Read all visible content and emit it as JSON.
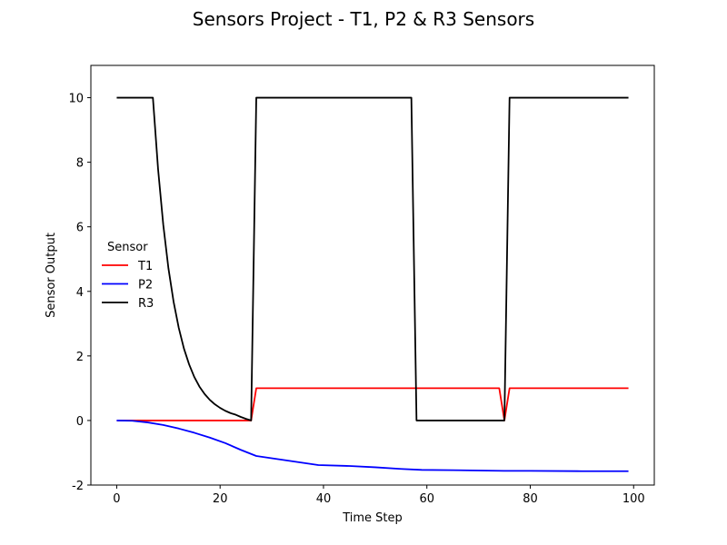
{
  "chart_data": {
    "type": "line",
    "title": "Sensors Project - T1, P2 & R3 Sensors",
    "xlabel": "Time Step",
    "ylabel": "Sensor Output",
    "xlim": [
      -5,
      104
    ],
    "ylim": [
      -2,
      11
    ],
    "xticks": [
      0,
      20,
      40,
      60,
      80,
      100
    ],
    "yticks": [
      -2,
      0,
      2,
      4,
      6,
      8,
      10
    ],
    "grid": false,
    "legend": {
      "title": "Sensor",
      "placement": "center-left"
    },
    "series": [
      {
        "name": "T1",
        "color": "#ff0000",
        "points": [
          [
            0,
            0
          ],
          [
            26,
            0
          ],
          [
            27,
            1
          ],
          [
            74,
            1
          ],
          [
            75,
            0
          ],
          [
            76,
            1
          ],
          [
            99,
            1
          ]
        ]
      },
      {
        "name": "P2",
        "color": "#0000ff",
        "points": [
          [
            0,
            0
          ],
          [
            3,
            -0.01
          ],
          [
            6,
            -0.06
          ],
          [
            9,
            -0.14
          ],
          [
            12,
            -0.25
          ],
          [
            15,
            -0.38
          ],
          [
            18,
            -0.53
          ],
          [
            21,
            -0.7
          ],
          [
            24,
            -0.91
          ],
          [
            27,
            -1.1
          ],
          [
            30,
            -1.17
          ],
          [
            33,
            -1.24
          ],
          [
            36,
            -1.31
          ],
          [
            39,
            -1.38
          ],
          [
            45,
            -1.41
          ],
          [
            50,
            -1.45
          ],
          [
            55,
            -1.5
          ],
          [
            59,
            -1.53
          ],
          [
            65,
            -1.54
          ],
          [
            70,
            -1.55
          ],
          [
            75,
            -1.56
          ],
          [
            80,
            -1.56
          ],
          [
            90,
            -1.57
          ],
          [
            99,
            -1.57
          ]
        ]
      },
      {
        "name": "R3",
        "color": "#000000",
        "points": [
          [
            0,
            10
          ],
          [
            7,
            10
          ],
          [
            8,
            7.79
          ],
          [
            9,
            6.07
          ],
          [
            10,
            4.72
          ],
          [
            11,
            3.68
          ],
          [
            12,
            2.87
          ],
          [
            13,
            2.23
          ],
          [
            14,
            1.74
          ],
          [
            15,
            1.35
          ],
          [
            16,
            1.05
          ],
          [
            17,
            0.82
          ],
          [
            18,
            0.64
          ],
          [
            19,
            0.5
          ],
          [
            20,
            0.39
          ],
          [
            21,
            0.3
          ],
          [
            22,
            0.23
          ],
          [
            23,
            0.18
          ],
          [
            24,
            0.11
          ],
          [
            25,
            0.05
          ],
          [
            26,
            0
          ],
          [
            27,
            10
          ],
          [
            57,
            10
          ],
          [
            58,
            0
          ],
          [
            75,
            0
          ],
          [
            76,
            10
          ],
          [
            99,
            10
          ]
        ]
      }
    ]
  }
}
